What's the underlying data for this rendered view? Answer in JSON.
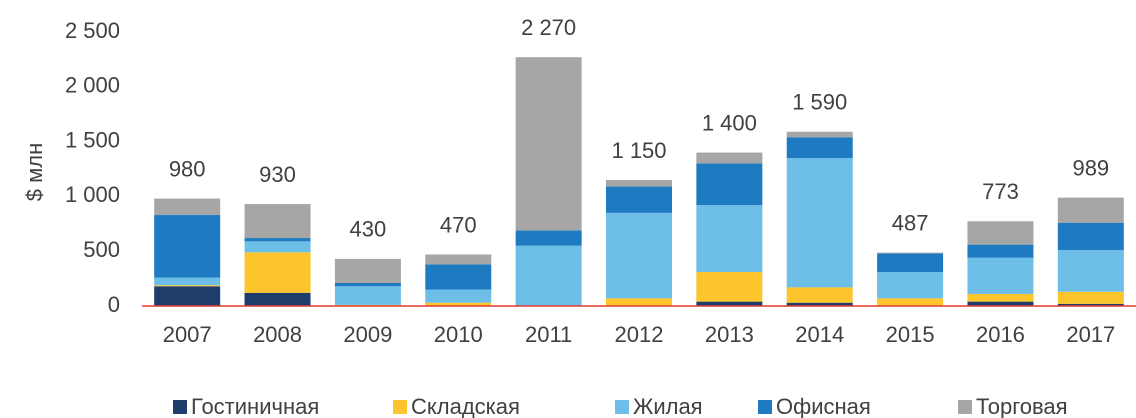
{
  "chart_data": {
    "type": "stacked_bar",
    "y_label": "$ млн",
    "categories": [
      "2007",
      "2008",
      "2009",
      "2010",
      "2011",
      "2012",
      "2013",
      "2014",
      "2015",
      "2016",
      "2017"
    ],
    "series": [
      {
        "name": "Гостиничная",
        "color": "#1f3d6b",
        "values": [
          180,
          120,
          0,
          0,
          0,
          0,
          40,
          30,
          0,
          40,
          20
        ]
      },
      {
        "name": "Складская",
        "color": "#fcc52b",
        "values": [
          10,
          370,
          10,
          30,
          0,
          70,
          270,
          140,
          70,
          70,
          110
        ]
      },
      {
        "name": "Жилая",
        "color": "#6dbfe8",
        "values": [
          70,
          100,
          170,
          120,
          550,
          780,
          610,
          1180,
          240,
          330,
          380
        ]
      },
      {
        "name": "Офисная",
        "color": "#1f7bc1",
        "values": [
          570,
          30,
          30,
          230,
          140,
          240,
          380,
          190,
          170,
          120,
          250
        ]
      },
      {
        "name": "Торговая",
        "color": "#a6a6a6",
        "values": [
          150,
          310,
          220,
          90,
          1580,
          60,
          100,
          50,
          7,
          213,
          229
        ]
      }
    ],
    "totals": [
      980,
      930,
      430,
      470,
      2270,
      1150,
      1400,
      1590,
      487,
      773,
      989
    ],
    "total_labels": [
      "980",
      "930",
      "430",
      "470",
      "2 270",
      "1 150",
      "1 400",
      "1 590",
      "487",
      "773",
      "989"
    ],
    "ylim": [
      0,
      2500
    ],
    "yticks": [
      0,
      500,
      {
        "value": 1000,
        "label": "1 000"
      },
      {
        "value": 1500,
        "label": "1 500"
      },
      {
        "value": 2000,
        "label": "2 000"
      },
      {
        "value": 2500,
        "label": "2 500"
      }
    ],
    "grid": false,
    "legend": "bottom"
  }
}
